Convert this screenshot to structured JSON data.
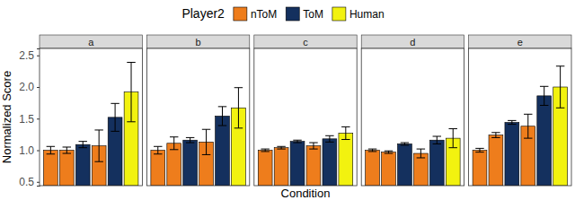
{
  "chart_data": {
    "type": "bar",
    "x_label": "Condition",
    "y_label": "Normalized Score",
    "legend_title": "Player2",
    "legend": "top",
    "tick_labels": "y",
    "ylim": [
      0.44,
      2.61
    ],
    "yticks": [
      {
        "value": 0.5,
        "label": "0.5"
      },
      {
        "value": 1.0,
        "label": "1.0"
      },
      {
        "value": 1.5,
        "label": "1.5"
      },
      {
        "value": 2.0,
        "label": "2.0"
      },
      {
        "value": 2.5,
        "label": "2.5"
      }
    ],
    "categories": [
      null,
      null,
      null,
      null,
      null,
      null
    ],
    "series_info": [
      {
        "name": "nToM",
        "color": "#ee7d1c"
      },
      {
        "name": "ToM",
        "color": "#14305e"
      },
      {
        "name": "Human",
        "color": "#f2f20f"
      }
    ],
    "panels": [
      {
        "title": "a",
        "series": [
          {
            "values": [
              1.0,
              1.0,
              null,
              1.07,
              null,
              null
            ],
            "errors": [
              0.06,
              0.05,
              null,
              0.25,
              null,
              null
            ]
          },
          {
            "values": [
              null,
              null,
              1.09,
              null,
              1.52,
              null
            ],
            "errors": [
              null,
              null,
              0.05,
              null,
              0.22,
              null
            ]
          },
          {
            "values": [
              null,
              null,
              null,
              null,
              null,
              1.92
            ],
            "errors": [
              null,
              null,
              null,
              null,
              null,
              0.47
            ]
          }
        ]
      },
      {
        "title": "b",
        "series": [
          {
            "values": [
              1.0,
              1.11,
              null,
              1.13,
              null,
              null
            ],
            "errors": [
              0.06,
              0.1,
              null,
              0.2,
              null,
              null
            ]
          },
          {
            "values": [
              null,
              null,
              1.16,
              null,
              1.54,
              null
            ],
            "errors": [
              null,
              null,
              0.04,
              null,
              0.15,
              null
            ]
          },
          {
            "values": [
              null,
              null,
              null,
              null,
              null,
              1.67
            ],
            "errors": [
              null,
              null,
              null,
              null,
              null,
              0.32
            ]
          }
        ]
      },
      {
        "title": "c",
        "series": [
          {
            "values": [
              1.0,
              1.04,
              null,
              1.07,
              null,
              null
            ],
            "errors": [
              0.02,
              0.02,
              null,
              0.05,
              null,
              null
            ]
          },
          {
            "values": [
              null,
              null,
              1.14,
              null,
              1.18,
              null
            ],
            "errors": [
              null,
              null,
              0.02,
              null,
              0.05,
              null
            ]
          },
          {
            "values": [
              null,
              null,
              null,
              null,
              null,
              1.27
            ],
            "errors": [
              null,
              null,
              null,
              null,
              null,
              0.1
            ]
          }
        ]
      },
      {
        "title": "d",
        "series": [
          {
            "values": [
              1.0,
              0.97,
              null,
              0.95,
              null,
              null
            ],
            "errors": [
              0.02,
              0.02,
              null,
              0.07,
              null,
              null
            ]
          },
          {
            "values": [
              null,
              null,
              1.1,
              null,
              1.16,
              null
            ],
            "errors": [
              null,
              null,
              0.02,
              null,
              0.06,
              null
            ]
          },
          {
            "values": [
              null,
              null,
              null,
              null,
              null,
              1.19
            ],
            "errors": [
              null,
              null,
              null,
              null,
              null,
              0.15
            ]
          }
        ]
      },
      {
        "title": "e",
        "series": [
          {
            "values": [
              1.0,
              1.24,
              null,
              1.38,
              null,
              null
            ],
            "errors": [
              0.03,
              0.04,
              null,
              0.19,
              null,
              null
            ]
          },
          {
            "values": [
              null,
              null,
              1.44,
              null,
              1.86,
              null
            ],
            "errors": [
              null,
              null,
              0.03,
              null,
              0.15,
              null
            ]
          },
          {
            "values": [
              null,
              null,
              null,
              null,
              null,
              2.0
            ],
            "errors": [
              null,
              null,
              null,
              null,
              null,
              0.33
            ]
          }
        ]
      }
    ]
  }
}
